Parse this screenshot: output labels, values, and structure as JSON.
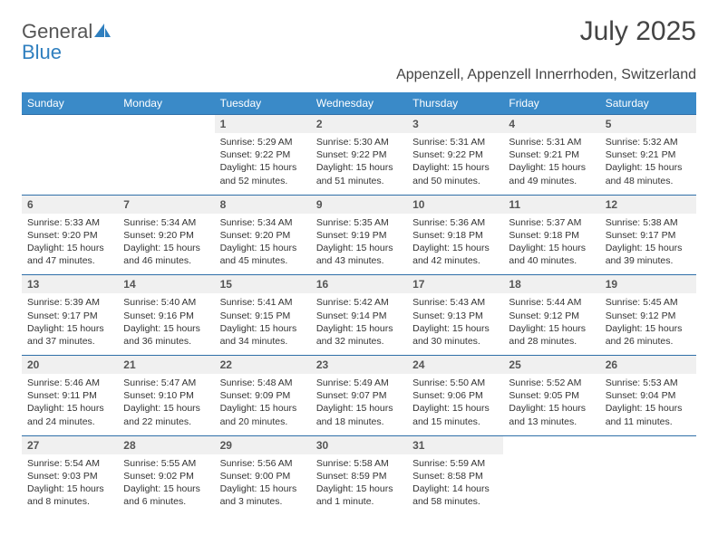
{
  "logo": {
    "word1": "General",
    "word2": "Blue"
  },
  "title": "July 2025",
  "subtitle": "Appenzell, Appenzell Innerrhoden, Switzerland",
  "colors": {
    "header_bg": "#3a8ac8",
    "header_text": "#ffffff",
    "daynum_bg": "#f0f0f0",
    "row_border": "#2f6fa8",
    "body_text": "#333333",
    "logo_gray": "#555555",
    "logo_blue": "#2f7fbf"
  },
  "day_labels": [
    "Sunday",
    "Monday",
    "Tuesday",
    "Wednesday",
    "Thursday",
    "Friday",
    "Saturday"
  ],
  "weeks": [
    [
      null,
      null,
      {
        "n": "1",
        "sr": "5:29 AM",
        "ss": "9:22 PM",
        "dl": "15 hours and 52 minutes."
      },
      {
        "n": "2",
        "sr": "5:30 AM",
        "ss": "9:22 PM",
        "dl": "15 hours and 51 minutes."
      },
      {
        "n": "3",
        "sr": "5:31 AM",
        "ss": "9:22 PM",
        "dl": "15 hours and 50 minutes."
      },
      {
        "n": "4",
        "sr": "5:31 AM",
        "ss": "9:21 PM",
        "dl": "15 hours and 49 minutes."
      },
      {
        "n": "5",
        "sr": "5:32 AM",
        "ss": "9:21 PM",
        "dl": "15 hours and 48 minutes."
      }
    ],
    [
      {
        "n": "6",
        "sr": "5:33 AM",
        "ss": "9:20 PM",
        "dl": "15 hours and 47 minutes."
      },
      {
        "n": "7",
        "sr": "5:34 AM",
        "ss": "9:20 PM",
        "dl": "15 hours and 46 minutes."
      },
      {
        "n": "8",
        "sr": "5:34 AM",
        "ss": "9:20 PM",
        "dl": "15 hours and 45 minutes."
      },
      {
        "n": "9",
        "sr": "5:35 AM",
        "ss": "9:19 PM",
        "dl": "15 hours and 43 minutes."
      },
      {
        "n": "10",
        "sr": "5:36 AM",
        "ss": "9:18 PM",
        "dl": "15 hours and 42 minutes."
      },
      {
        "n": "11",
        "sr": "5:37 AM",
        "ss": "9:18 PM",
        "dl": "15 hours and 40 minutes."
      },
      {
        "n": "12",
        "sr": "5:38 AM",
        "ss": "9:17 PM",
        "dl": "15 hours and 39 minutes."
      }
    ],
    [
      {
        "n": "13",
        "sr": "5:39 AM",
        "ss": "9:17 PM",
        "dl": "15 hours and 37 minutes."
      },
      {
        "n": "14",
        "sr": "5:40 AM",
        "ss": "9:16 PM",
        "dl": "15 hours and 36 minutes."
      },
      {
        "n": "15",
        "sr": "5:41 AM",
        "ss": "9:15 PM",
        "dl": "15 hours and 34 minutes."
      },
      {
        "n": "16",
        "sr": "5:42 AM",
        "ss": "9:14 PM",
        "dl": "15 hours and 32 minutes."
      },
      {
        "n": "17",
        "sr": "5:43 AM",
        "ss": "9:13 PM",
        "dl": "15 hours and 30 minutes."
      },
      {
        "n": "18",
        "sr": "5:44 AM",
        "ss": "9:12 PM",
        "dl": "15 hours and 28 minutes."
      },
      {
        "n": "19",
        "sr": "5:45 AM",
        "ss": "9:12 PM",
        "dl": "15 hours and 26 minutes."
      }
    ],
    [
      {
        "n": "20",
        "sr": "5:46 AM",
        "ss": "9:11 PM",
        "dl": "15 hours and 24 minutes."
      },
      {
        "n": "21",
        "sr": "5:47 AM",
        "ss": "9:10 PM",
        "dl": "15 hours and 22 minutes."
      },
      {
        "n": "22",
        "sr": "5:48 AM",
        "ss": "9:09 PM",
        "dl": "15 hours and 20 minutes."
      },
      {
        "n": "23",
        "sr": "5:49 AM",
        "ss": "9:07 PM",
        "dl": "15 hours and 18 minutes."
      },
      {
        "n": "24",
        "sr": "5:50 AM",
        "ss": "9:06 PM",
        "dl": "15 hours and 15 minutes."
      },
      {
        "n": "25",
        "sr": "5:52 AM",
        "ss": "9:05 PM",
        "dl": "15 hours and 13 minutes."
      },
      {
        "n": "26",
        "sr": "5:53 AM",
        "ss": "9:04 PM",
        "dl": "15 hours and 11 minutes."
      }
    ],
    [
      {
        "n": "27",
        "sr": "5:54 AM",
        "ss": "9:03 PM",
        "dl": "15 hours and 8 minutes."
      },
      {
        "n": "28",
        "sr": "5:55 AM",
        "ss": "9:02 PM",
        "dl": "15 hours and 6 minutes."
      },
      {
        "n": "29",
        "sr": "5:56 AM",
        "ss": "9:00 PM",
        "dl": "15 hours and 3 minutes."
      },
      {
        "n": "30",
        "sr": "5:58 AM",
        "ss": "8:59 PM",
        "dl": "15 hours and 1 minute."
      },
      {
        "n": "31",
        "sr": "5:59 AM",
        "ss": "8:58 PM",
        "dl": "14 hours and 58 minutes."
      },
      null,
      null
    ]
  ],
  "labels": {
    "sunrise": "Sunrise:",
    "sunset": "Sunset:",
    "daylight": "Daylight:"
  }
}
